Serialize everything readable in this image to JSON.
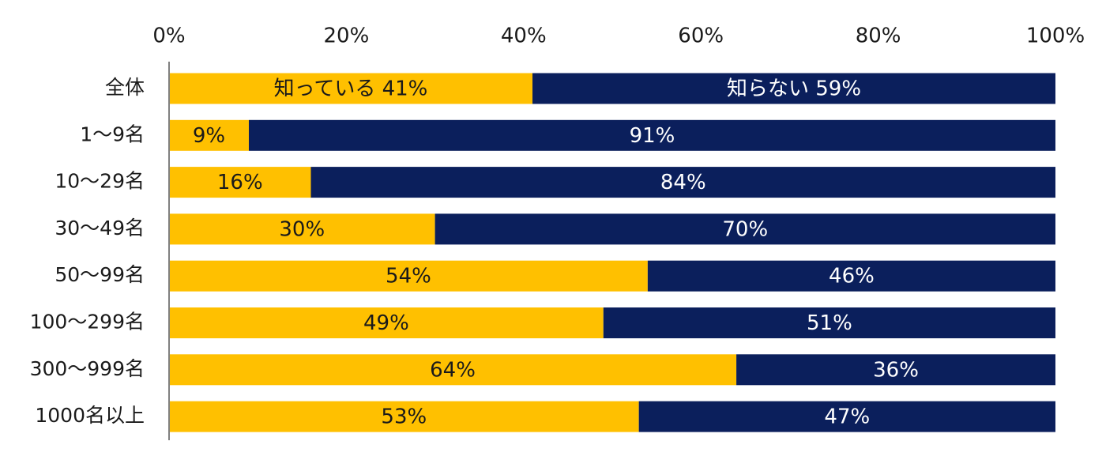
{
  "chart_data": {
    "type": "bar",
    "orientation": "horizontal",
    "stacked": true,
    "percent_stacked": true,
    "categories": [
      "全体",
      "1～9名",
      "10～29名",
      "30～49名",
      "50～99名",
      "100～299名",
      "300～999名",
      "1000名以上"
    ],
    "series": [
      {
        "name": "知っている",
        "color": "#FFC000",
        "values": [
          41,
          9,
          16,
          30,
          54,
          49,
          64,
          53
        ],
        "labels": [
          "知っている 41%",
          "9%",
          "16%",
          "30%",
          "54%",
          "49%",
          "64%",
          "53%"
        ]
      },
      {
        "name": "知らない",
        "color": "#0B1F5C",
        "values": [
          59,
          91,
          84,
          70,
          46,
          51,
          36,
          47
        ],
        "labels": [
          "知らない 59%",
          "91%",
          "84%",
          "70%",
          "46%",
          "51%",
          "36%",
          "47%"
        ]
      }
    ],
    "xlim": [
      0,
      100
    ],
    "x_ticks": [
      "0%",
      "20%",
      "40%",
      "60%",
      "80%",
      "100%"
    ],
    "x_tick_values": [
      0,
      20,
      40,
      60,
      80,
      100
    ],
    "x_axis_position": "top",
    "grid": false,
    "legend": "none",
    "title": "",
    "xlabel": "",
    "ylabel": ""
  }
}
